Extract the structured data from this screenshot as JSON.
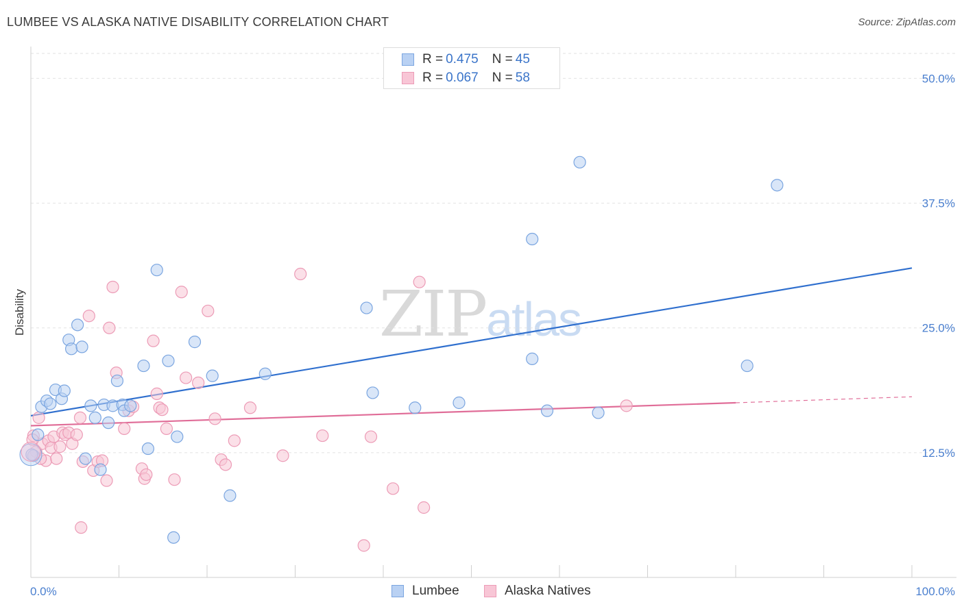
{
  "title": "LUMBEE VS ALASKA NATIVE DISABILITY CORRELATION CHART",
  "source": "Source: ZipAtlas.com",
  "watermark": {
    "zip": "ZIP",
    "atlas": "atlas"
  },
  "legend": {
    "rows": [
      {
        "r_label": "R =",
        "r_value": "0.475",
        "n_label": "N =",
        "n_value": "45"
      },
      {
        "r_label": "R =",
        "r_value": "0.067",
        "n_label": "N =",
        "n_value": "58"
      }
    ]
  },
  "bottom_legend": {
    "lumbee": "Lumbee",
    "alaska": "Alaska Natives"
  },
  "colors": {
    "lumbee_fill": "#b9d1f3",
    "lumbee_stroke": "#7aa5e0",
    "lumbee_line": "#2f6fce",
    "alaska_fill": "#f8c6d6",
    "alaska_stroke": "#ec9bb6",
    "alaska_line": "#e06d98",
    "tick": "#4a7fcf"
  },
  "chart_data": {
    "type": "scatter",
    "title": "LUMBEE VS ALASKA NATIVE DISABILITY CORRELATION CHART",
    "xlabel": "",
    "ylabel": "Disability",
    "xlim": [
      0,
      100
    ],
    "ylim": [
      0,
      52.5
    ],
    "x_tick_labels": [
      "0.0%",
      "100.0%"
    ],
    "y_ticks": [
      12.5,
      25.0,
      37.5,
      50.0
    ],
    "y_tick_labels": [
      "12.5%",
      "25.0%",
      "37.5%",
      "50.0%"
    ],
    "grid": true,
    "series": [
      {
        "name": "Lumbee",
        "r": 0.475,
        "n": 45,
        "points": [
          [
            0.3,
            12.2
          ],
          [
            0.8,
            14.3
          ],
          [
            1.2,
            17.1
          ],
          [
            1.8,
            17.7
          ],
          [
            2.2,
            17.4
          ],
          [
            2.8,
            18.8
          ],
          [
            3.5,
            17.9
          ],
          [
            3.8,
            18.7
          ],
          [
            4.3,
            23.8
          ],
          [
            4.6,
            22.9
          ],
          [
            5.3,
            25.3
          ],
          [
            5.8,
            23.1
          ],
          [
            6.2,
            11.9
          ],
          [
            6.8,
            17.2
          ],
          [
            7.3,
            16.0
          ],
          [
            7.9,
            10.8
          ],
          [
            8.3,
            17.3
          ],
          [
            8.8,
            15.5
          ],
          [
            9.3,
            17.2
          ],
          [
            9.8,
            19.7
          ],
          [
            10.4,
            17.3
          ],
          [
            10.6,
            16.7
          ],
          [
            11.3,
            17.2
          ],
          [
            12.8,
            21.2
          ],
          [
            13.3,
            12.9
          ],
          [
            14.3,
            30.8
          ],
          [
            15.6,
            21.7
          ],
          [
            16.2,
            4.0
          ],
          [
            16.6,
            14.1
          ],
          [
            18.6,
            23.6
          ],
          [
            20.6,
            20.2
          ],
          [
            22.6,
            8.2
          ],
          [
            26.6,
            20.4
          ],
          [
            38.1,
            27.0
          ],
          [
            38.8,
            18.5
          ],
          [
            43.6,
            17.0
          ],
          [
            48.6,
            17.5
          ],
          [
            56.9,
            21.9
          ],
          [
            56.9,
            33.9
          ],
          [
            58.6,
            16.7
          ],
          [
            62.3,
            41.6
          ],
          [
            64.4,
            16.5
          ],
          [
            81.3,
            21.2
          ],
          [
            84.7,
            39.3
          ],
          [
            0.1,
            12.3
          ]
        ],
        "trend": {
          "x": [
            0,
            100
          ],
          "y": [
            16.2,
            31.0
          ]
        }
      },
      {
        "name": "Alaska Natives",
        "r": 0.067,
        "n": 58,
        "points": [
          [
            0.3,
            14.2
          ],
          [
            0.6,
            12.6
          ],
          [
            0.9,
            16.0
          ],
          [
            1.3,
            13.4
          ],
          [
            1.7,
            11.7
          ],
          [
            2.0,
            13.7
          ],
          [
            2.3,
            13.0
          ],
          [
            2.6,
            14.1
          ],
          [
            2.9,
            11.9
          ],
          [
            3.3,
            13.1
          ],
          [
            3.6,
            14.5
          ],
          [
            3.9,
            14.3
          ],
          [
            4.3,
            14.5
          ],
          [
            4.7,
            13.4
          ],
          [
            5.2,
            14.3
          ],
          [
            5.6,
            16.0
          ],
          [
            5.9,
            11.6
          ],
          [
            5.7,
            5.0
          ],
          [
            6.6,
            26.2
          ],
          [
            7.1,
            10.7
          ],
          [
            7.6,
            11.6
          ],
          [
            8.1,
            11.7
          ],
          [
            8.6,
            9.7
          ],
          [
            8.9,
            25.0
          ],
          [
            9.3,
            29.1
          ],
          [
            9.7,
            20.5
          ],
          [
            10.6,
            14.9
          ],
          [
            11.1,
            16.7
          ],
          [
            11.6,
            17.1
          ],
          [
            12.6,
            10.9
          ],
          [
            12.9,
            9.9
          ],
          [
            13.1,
            10.3
          ],
          [
            13.9,
            23.7
          ],
          [
            14.3,
            18.4
          ],
          [
            14.6,
            17.0
          ],
          [
            14.9,
            16.8
          ],
          [
            15.4,
            14.9
          ],
          [
            16.3,
            9.8
          ],
          [
            17.1,
            28.6
          ],
          [
            17.6,
            20.0
          ],
          [
            19.0,
            19.5
          ],
          [
            20.1,
            26.7
          ],
          [
            20.9,
            15.9
          ],
          [
            21.6,
            11.8
          ],
          [
            22.1,
            11.3
          ],
          [
            23.1,
            13.7
          ],
          [
            24.9,
            17.0
          ],
          [
            28.6,
            12.2
          ],
          [
            30.6,
            30.4
          ],
          [
            33.1,
            14.2
          ],
          [
            37.8,
            3.2
          ],
          [
            38.6,
            14.1
          ],
          [
            41.1,
            8.9
          ],
          [
            44.1,
            29.6
          ],
          [
            44.6,
            7.0
          ],
          [
            67.6,
            17.2
          ],
          [
            0.2,
            13.8
          ],
          [
            1.1,
            11.9
          ]
        ],
        "trend": {
          "x": [
            0,
            80
          ],
          "y": [
            15.2,
            17.5
          ]
        },
        "trend_dashed": {
          "x": [
            80,
            100
          ],
          "y": [
            17.5,
            18.1
          ]
        }
      }
    ]
  }
}
